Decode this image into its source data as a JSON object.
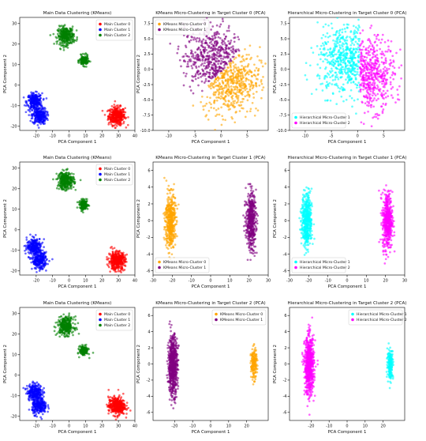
{
  "figure": {
    "colors": {
      "main0": "#ff0000",
      "main1": "#0000ff",
      "main2": "#008000",
      "kmeans0": "#ffa500",
      "kmeans1": "#800080",
      "hier1": "#00ffff",
      "hier2": "#ff00ff"
    }
  },
  "chart_data": [
    {
      "type": "scatter",
      "title": "Main Data Clustering (KMeans)",
      "xlabel": "PCA Component 1",
      "ylabel": "PCA Component 2",
      "xlim": [
        -30,
        40
      ],
      "ylim": [
        -22,
        33
      ],
      "xticks": [
        -20,
        -10,
        0,
        10,
        20,
        30,
        40
      ],
      "yticks": [
        -20,
        -10,
        0,
        10,
        20,
        30
      ],
      "legend": "top-right",
      "series": [
        {
          "name": "Main Cluster 0",
          "color": "main0",
          "clusters": [
            {
              "cx": 29,
              "cy": -15,
              "sx": 2.5,
              "sy": 2.2,
              "n": 380
            }
          ]
        },
        {
          "name": "Main Cluster 1",
          "color": "main1",
          "clusters": [
            {
              "cx": -21,
              "cy": -8,
              "sx": 2.3,
              "sy": 2.0,
              "n": 260
            },
            {
              "cx": -18,
              "cy": -15,
              "sx": 2.2,
              "sy": 2.0,
              "n": 260
            }
          ]
        },
        {
          "name": "Main Cluster 2",
          "color": "main2",
          "clusters": [
            {
              "cx": -2,
              "cy": 24,
              "sx": 2.5,
              "sy": 2.2,
              "n": 320
            },
            {
              "cx": 9,
              "cy": 12,
              "sx": 1.3,
              "sy": 1.2,
              "n": 160
            }
          ]
        }
      ]
    },
    {
      "type": "scatter",
      "title": "KMeans Micro-Clustering in Target Cluster 0 (PCA)",
      "xlabel": "PCA Component 1",
      "ylabel": "PCA Component 2",
      "xlim": [
        -13,
        9
      ],
      "ylim": [
        -10,
        8.5
      ],
      "xticks": [
        -10,
        -5,
        0,
        5
      ],
      "yticks": [
        -10.0,
        -7.5,
        -5.0,
        -2.5,
        0.0,
        2.5,
        5.0,
        7.5
      ],
      "legend": "top-left",
      "series": [
        {
          "name": "KMeans Micro-Cluster 0",
          "color": "kmeans0",
          "clusters": [
            {
              "cx": 1.8,
              "cy": -1.8,
              "sx": 2.8,
              "sy": 2.7,
              "n": 500,
              "split": "below"
            }
          ]
        },
        {
          "name": "KMeans Micro-Cluster 1",
          "color": "kmeans1",
          "clusters": [
            {
              "cx": -1.5,
              "cy": 1.8,
              "sx": 2.8,
              "sy": 2.7,
              "n": 500,
              "split": "above"
            }
          ]
        }
      ]
    },
    {
      "type": "scatter",
      "title": "Hierarchical Micro-Clustering in Target Cluster 0 (PCA)",
      "xlabel": "PCA Component 1",
      "ylabel": "PCA Component 2",
      "xlim": [
        -13,
        9
      ],
      "ylim": [
        -10,
        8.5
      ],
      "xticks": [
        -10,
        -5,
        0,
        5
      ],
      "yticks": [
        -10.0,
        -7.5,
        -5.0,
        -2.5,
        0.0,
        2.5,
        5.0,
        7.5
      ],
      "legend": "bottom-left",
      "series": [
        {
          "name": "Hierarchical Micro-Cluster 1",
          "color": "hier1",
          "clusters": [
            {
              "cx": -2.0,
              "cy": 1.5,
              "sx": 2.8,
              "sy": 2.8,
              "n": 520,
              "split": "leftx"
            }
          ]
        },
        {
          "name": "Hierarchical Micro-Cluster 2",
          "color": "hier2",
          "clusters": [
            {
              "cx": 2.2,
              "cy": -0.8,
              "sx": 2.4,
              "sy": 2.9,
              "n": 480,
              "split": "rightx"
            }
          ]
        }
      ]
    },
    {
      "type": "scatter",
      "title": "Main Data Clustering (KMeans)",
      "xlabel": "PCA Component 1",
      "ylabel": "PCA Component 2",
      "xlim": [
        -30,
        40
      ],
      "ylim": [
        -22,
        33
      ],
      "xticks": [
        -20,
        -10,
        0,
        10,
        20,
        30,
        40
      ],
      "yticks": [
        -20,
        -10,
        0,
        10,
        20,
        30
      ],
      "legend": "top-right",
      "series": [
        {
          "name": "Main Cluster 0",
          "color": "main0",
          "clusters": [
            {
              "cx": 29,
              "cy": -15,
              "sx": 2.5,
              "sy": 2.2,
              "n": 380
            }
          ]
        },
        {
          "name": "Main Cluster 1",
          "color": "main1",
          "clusters": [
            {
              "cx": -21,
              "cy": -8,
              "sx": 2.3,
              "sy": 2.0,
              "n": 260
            },
            {
              "cx": -18,
              "cy": -15,
              "sx": 2.2,
              "sy": 2.0,
              "n": 260
            }
          ]
        },
        {
          "name": "Main Cluster 2",
          "color": "main2",
          "clusters": [
            {
              "cx": -2,
              "cy": 24,
              "sx": 2.5,
              "sy": 2.2,
              "n": 320
            },
            {
              "cx": 9,
              "cy": 12,
              "sx": 1.3,
              "sy": 1.2,
              "n": 160
            }
          ]
        }
      ]
    },
    {
      "type": "scatter",
      "title": "KMeans Micro-Clustering in Target Cluster 1 (PCA)",
      "xlabel": "PCA Component 1",
      "ylabel": "PCA Component 2",
      "xlim": [
        -30,
        30
      ],
      "ylim": [
        -6.5,
        7
      ],
      "xticks": [
        -30,
        -20,
        -10,
        0,
        10,
        20,
        30
      ],
      "yticks": [
        -6,
        -4,
        -2,
        0,
        2,
        4,
        6
      ],
      "legend": "bottom-left",
      "series": [
        {
          "name": "KMeans Micro-Cluster 0",
          "color": "kmeans0",
          "clusters": [
            {
              "cx": -21,
              "cy": 0,
              "sx": 1.3,
              "sy": 1.6,
              "n": 480
            }
          ]
        },
        {
          "name": "KMeans Micro-Cluster 1",
          "color": "kmeans1",
          "clusters": [
            {
              "cx": 21,
              "cy": 0,
              "sx": 1.3,
              "sy": 1.7,
              "n": 480
            }
          ]
        }
      ]
    },
    {
      "type": "scatter",
      "title": "Hierarchical Micro-Clustering in Target Cluster 1 (PCA)",
      "xlabel": "PCA Component 1",
      "ylabel": "PCA Component 2",
      "xlim": [
        -30,
        30
      ],
      "ylim": [
        -6.5,
        7
      ],
      "xticks": [
        -30,
        -20,
        -10,
        0,
        10,
        20,
        30
      ],
      "yticks": [
        -6,
        -4,
        -2,
        0,
        2,
        4,
        6
      ],
      "legend": "bottom-left",
      "series": [
        {
          "name": "Hierarchical Micro-Cluster 1",
          "color": "hier1",
          "clusters": [
            {
              "cx": -21,
              "cy": 0,
              "sx": 1.3,
              "sy": 1.6,
              "n": 480
            }
          ]
        },
        {
          "name": "Hierarchical Micro-Cluster 2",
          "color": "hier2",
          "clusters": [
            {
              "cx": 21,
              "cy": 0,
              "sx": 1.3,
              "sy": 1.7,
              "n": 480
            }
          ]
        }
      ]
    },
    {
      "type": "scatter",
      "title": "Main Data Clustering (KMeans)",
      "xlabel": "PCA Component 1",
      "ylabel": "PCA Component 2",
      "xlim": [
        -30,
        40
      ],
      "ylim": [
        -22,
        33
      ],
      "xticks": [
        -20,
        -10,
        0,
        10,
        20,
        30,
        40
      ],
      "yticks": [
        -20,
        -10,
        0,
        10,
        20,
        30
      ],
      "legend": "top-right",
      "series": [
        {
          "name": "Main Cluster 0",
          "color": "main0",
          "clusters": [
            {
              "cx": 29,
              "cy": -15,
              "sx": 2.5,
              "sy": 2.2,
              "n": 380
            }
          ]
        },
        {
          "name": "Main Cluster 1",
          "color": "main1",
          "clusters": [
            {
              "cx": -21,
              "cy": -8,
              "sx": 2.3,
              "sy": 2.0,
              "n": 260
            },
            {
              "cx": -18,
              "cy": -15,
              "sx": 2.2,
              "sy": 2.0,
              "n": 260
            }
          ]
        },
        {
          "name": "Main Cluster 2",
          "color": "main2",
          "clusters": [
            {
              "cx": -2,
              "cy": 24,
              "sx": 2.5,
              "sy": 2.2,
              "n": 320
            },
            {
              "cx": 9,
              "cy": 12,
              "sx": 1.3,
              "sy": 1.2,
              "n": 160
            }
          ]
        }
      ]
    },
    {
      "type": "scatter",
      "title": "KMeans Micro-Clustering in Target Cluster 2 (PCA)",
      "xlabel": "PCA Component 1",
      "ylabel": "PCA Component 2",
      "xlim": [
        -32,
        32
      ],
      "ylim": [
        -7,
        7
      ],
      "xticks": [
        -20,
        -10,
        0,
        10,
        20
      ],
      "yticks": [
        -6,
        -4,
        -2,
        0,
        2,
        4,
        6
      ],
      "legend": "top-right",
      "series": [
        {
          "name": "KMeans Micro-Cluster 0",
          "color": "kmeans0",
          "clusters": [
            {
              "cx": 24,
              "cy": 0,
              "sx": 0.8,
              "sy": 0.9,
              "n": 200
            }
          ]
        },
        {
          "name": "KMeans Micro-Cluster 1",
          "color": "kmeans1",
          "clusters": [
            {
              "cx": -21,
              "cy": -0.2,
              "sx": 1.3,
              "sy": 1.8,
              "n": 650
            }
          ]
        }
      ]
    },
    {
      "type": "scatter",
      "title": "Hierarchical Micro-Clustering in Target Cluster 2 (PCA)",
      "xlabel": "PCA Component 1",
      "ylabel": "PCA Component 2",
      "xlim": [
        -32,
        32
      ],
      "ylim": [
        -7,
        7
      ],
      "xticks": [
        -20,
        -10,
        0,
        10,
        20
      ],
      "yticks": [
        -6,
        -4,
        -2,
        0,
        2,
        4,
        6
      ],
      "legend": "top-right",
      "series": [
        {
          "name": "Hierarchical Micro-Cluster 1",
          "color": "hier1",
          "clusters": [
            {
              "cx": 24,
              "cy": 0,
              "sx": 0.8,
              "sy": 0.9,
              "n": 200
            }
          ]
        },
        {
          "name": "Hierarchical Micro-Cluster 2",
          "color": "hier2",
          "clusters": [
            {
              "cx": -21,
              "cy": -0.2,
              "sx": 1.3,
              "sy": 1.8,
              "n": 650
            }
          ]
        }
      ]
    }
  ]
}
